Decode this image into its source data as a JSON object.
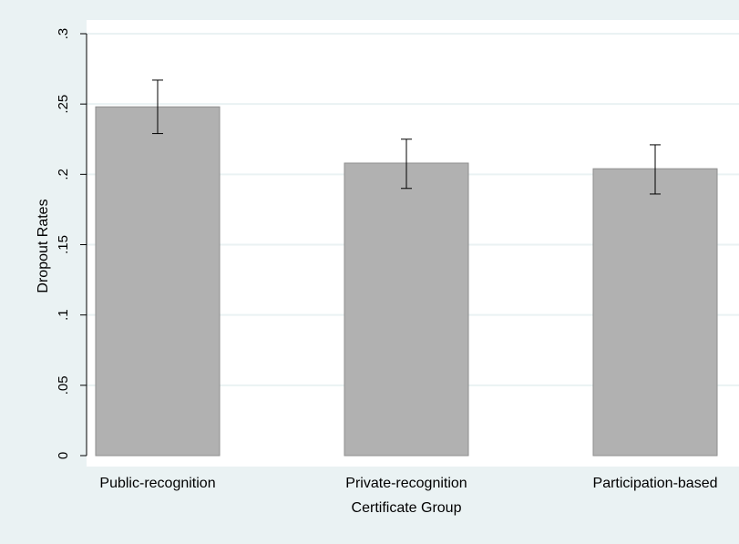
{
  "chart_data": {
    "type": "bar",
    "title": "",
    "xlabel": "Certificate Group",
    "ylabel": "Dropout Rates",
    "categories": [
      "Public-recognition",
      "Private-recognition",
      "Participation-based"
    ],
    "values": [
      0.248,
      0.208,
      0.204
    ],
    "error_low": [
      0.229,
      0.19,
      0.186
    ],
    "error_high": [
      0.267,
      0.225,
      0.221
    ],
    "ylim": [
      0,
      0.3
    ],
    "yticks": [
      {
        "value": 0,
        "label": "0"
      },
      {
        "value": 0.05,
        "label": ".05"
      },
      {
        "value": 0.1,
        "label": ".1"
      },
      {
        "value": 0.15,
        "label": ".15"
      },
      {
        "value": 0.2,
        "label": ".2"
      },
      {
        "value": 0.25,
        "label": ".25"
      },
      {
        "value": 0.3,
        "label": ".3"
      }
    ],
    "grid": true,
    "legend": "none",
    "colors": {
      "bar_fill": "#b1b1b1",
      "bar_stroke": "#8e8e8e",
      "plot_bg": "#ffffff",
      "outer_bg": "#eaf2f3",
      "grid": "#eaf2f3",
      "error_bar": "#000000"
    }
  }
}
